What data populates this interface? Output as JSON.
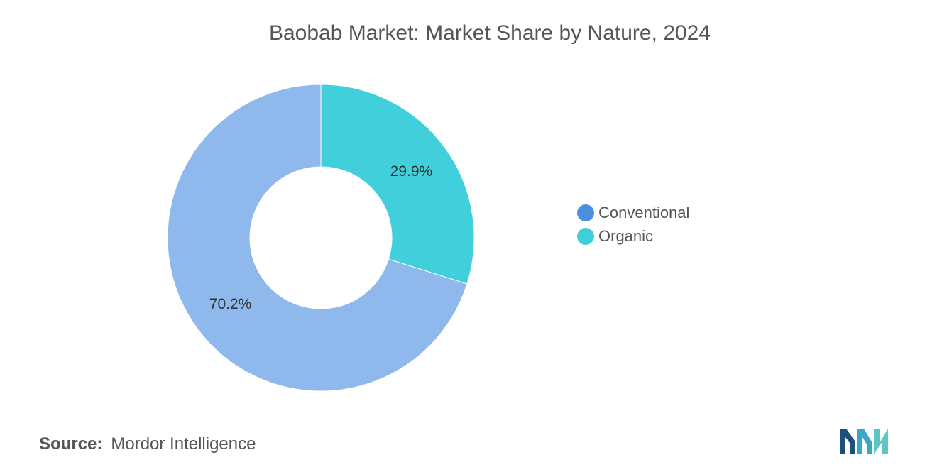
{
  "chart_data": {
    "type": "pie",
    "style": "donut",
    "title": "Baobab Market: Market Share by Nature, 2024",
    "categories": [
      "Conventional",
      "Organic"
    ],
    "values": [
      70.2,
      29.9
    ],
    "data_labels": [
      "70.2%",
      "29.9%"
    ],
    "unit": "%",
    "legend_position": "right",
    "legend_marker_colors": [
      "#4a90e2",
      "#3ecfda"
    ],
    "slice_colors": [
      "#8fb8ed",
      "#41d0db"
    ]
  },
  "source": {
    "label": "Source:",
    "value": "Mordor Intelligence"
  },
  "logo": {
    "icon": "mordor-intelligence-logo-icon"
  }
}
